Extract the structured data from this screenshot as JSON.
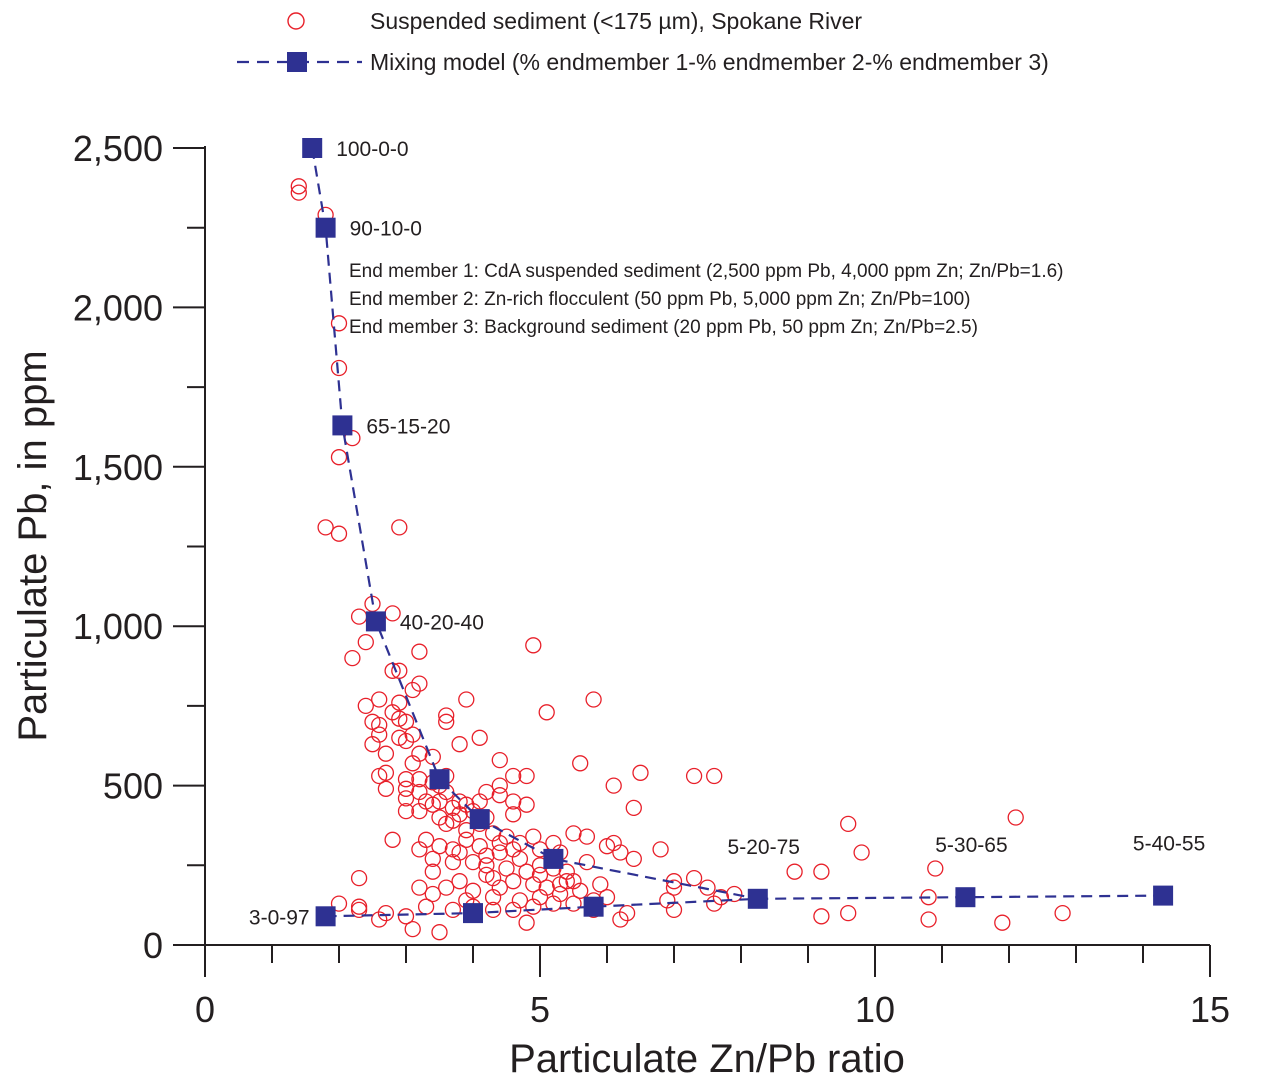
{
  "chart_data": {
    "type": "scatter",
    "xlabel": "Particulate Zn/Pb ratio",
    "ylabel": "Particulate Pb, in ppm",
    "xlim": [
      0,
      15
    ],
    "ylim": [
      0,
      2500
    ],
    "x_ticks": [
      0,
      5,
      10,
      15
    ],
    "x_tick_labels": [
      "0",
      "5",
      "10",
      "15"
    ],
    "x_minor_step": 1,
    "y_ticks": [
      0,
      500,
      1000,
      1500,
      2000,
      2500
    ],
    "y_tick_labels": [
      "0",
      "500",
      "1,000",
      "1,500",
      "2,000",
      "2,500"
    ],
    "y_minor_step": 250,
    "legend_position": "top",
    "colors": {
      "sediment": "#e8202a",
      "model": "#2e3192",
      "text": "#231f20"
    },
    "legend": [
      {
        "label": "Suspended sediment (<175 µm), Spokane River",
        "marker": "open-circle"
      },
      {
        "label": "Mixing model (% endmember 1-% endmember 2-% endmember 3)",
        "marker": "filled-square-dashed-line"
      }
    ],
    "series": [
      {
        "name": "Suspended sediment (<175 µm), Spokane River",
        "points": [
          [
            1.4,
            2380
          ],
          [
            1.4,
            2360
          ],
          [
            1.8,
            2290
          ],
          [
            2.0,
            1950
          ],
          [
            2.0,
            1810
          ],
          [
            2.2,
            1590
          ],
          [
            2.0,
            1530
          ],
          [
            1.8,
            1310
          ],
          [
            2.9,
            1310
          ],
          [
            2.0,
            1290
          ],
          [
            2.5,
            1070
          ],
          [
            2.3,
            1030
          ],
          [
            2.8,
            1040
          ],
          [
            2.2,
            900
          ],
          [
            2.4,
            950
          ],
          [
            3.2,
            920
          ],
          [
            2.8,
            860
          ],
          [
            2.9,
            860
          ],
          [
            3.2,
            820
          ],
          [
            3.1,
            800
          ],
          [
            2.6,
            770
          ],
          [
            2.8,
            730
          ],
          [
            2.4,
            750
          ],
          [
            2.5,
            700
          ],
          [
            2.6,
            690
          ],
          [
            2.9,
            710
          ],
          [
            3.0,
            700
          ],
          [
            2.6,
            660
          ],
          [
            2.9,
            650
          ],
          [
            3.0,
            640
          ],
          [
            3.1,
            660
          ],
          [
            3.6,
            720
          ],
          [
            3.9,
            770
          ],
          [
            3.6,
            700
          ],
          [
            2.5,
            630
          ],
          [
            3.2,
            600
          ],
          [
            3.4,
            590
          ],
          [
            3.1,
            570
          ],
          [
            2.6,
            530
          ],
          [
            2.7,
            540
          ],
          [
            3.0,
            520
          ],
          [
            3.2,
            520
          ],
          [
            3.4,
            510
          ],
          [
            3.0,
            490
          ],
          [
            3.2,
            480
          ],
          [
            3.5,
            500
          ],
          [
            3.6,
            480
          ],
          [
            2.7,
            490
          ],
          [
            3.0,
            460
          ],
          [
            3.3,
            450
          ],
          [
            3.4,
            440
          ],
          [
            3.8,
            450
          ],
          [
            3.7,
            430
          ],
          [
            3.9,
            440
          ],
          [
            3.2,
            420
          ],
          [
            3.5,
            400
          ],
          [
            3.7,
            390
          ],
          [
            3.8,
            410
          ],
          [
            4.0,
            420
          ],
          [
            4.1,
            380
          ],
          [
            4.2,
            400
          ],
          [
            4.4,
            500
          ],
          [
            4.6,
            530
          ],
          [
            4.8,
            530
          ],
          [
            4.4,
            470
          ],
          [
            4.2,
            480
          ],
          [
            3.9,
            360
          ],
          [
            3.6,
            380
          ],
          [
            4.3,
            350
          ],
          [
            4.5,
            340
          ],
          [
            4.7,
            320
          ],
          [
            4.9,
            340
          ],
          [
            5.0,
            300
          ],
          [
            4.6,
            300
          ],
          [
            4.4,
            290
          ],
          [
            4.2,
            280
          ],
          [
            3.8,
            290
          ],
          [
            3.7,
            300
          ],
          [
            3.5,
            310
          ],
          [
            3.2,
            300
          ],
          [
            3.4,
            270
          ],
          [
            4.0,
            260
          ],
          [
            4.2,
            250
          ],
          [
            4.5,
            240
          ],
          [
            4.8,
            230
          ],
          [
            5.0,
            250
          ],
          [
            5.2,
            240
          ],
          [
            5.4,
            230
          ],
          [
            4.3,
            210
          ],
          [
            4.6,
            200
          ],
          [
            4.9,
            190
          ],
          [
            5.1,
            180
          ],
          [
            5.3,
            190
          ],
          [
            5.5,
            200
          ],
          [
            3.8,
            200
          ],
          [
            3.6,
            180
          ],
          [
            3.4,
            160
          ],
          [
            3.2,
            180
          ],
          [
            4.0,
            170
          ],
          [
            4.3,
            150
          ],
          [
            4.7,
            140
          ],
          [
            5.0,
            150
          ],
          [
            5.3,
            160
          ],
          [
            5.6,
            170
          ],
          [
            5.9,
            190
          ],
          [
            6.0,
            150
          ],
          [
            5.8,
            140
          ],
          [
            5.5,
            130
          ],
          [
            5.2,
            130
          ],
          [
            4.9,
            120
          ],
          [
            4.6,
            110
          ],
          [
            4.3,
            110
          ],
          [
            4.0,
            120
          ],
          [
            3.7,
            110
          ],
          [
            3.3,
            120
          ],
          [
            3.0,
            90
          ],
          [
            3.1,
            50
          ],
          [
            2.3,
            120
          ],
          [
            2.3,
            210
          ],
          [
            2.0,
            130
          ],
          [
            3.5,
            40
          ],
          [
            2.3,
            110
          ],
          [
            2.6,
            80
          ],
          [
            5.5,
            350
          ],
          [
            5.7,
            340
          ],
          [
            6.0,
            310
          ],
          [
            6.1,
            320
          ],
          [
            6.2,
            290
          ],
          [
            6.4,
            270
          ],
          [
            6.1,
            500
          ],
          [
            6.5,
            540
          ],
          [
            6.4,
            430
          ],
          [
            5.6,
            570
          ],
          [
            4.9,
            940
          ],
          [
            5.8,
            770
          ],
          [
            5.1,
            730
          ],
          [
            4.1,
            650
          ],
          [
            4.4,
            580
          ],
          [
            6.8,
            300
          ],
          [
            7.0,
            200
          ],
          [
            7.0,
            180
          ],
          [
            7.3,
            210
          ],
          [
            7.5,
            180
          ],
          [
            7.7,
            150
          ],
          [
            7.9,
            160
          ],
          [
            7.6,
            130
          ],
          [
            7.0,
            110
          ],
          [
            7.3,
            530
          ],
          [
            7.6,
            530
          ],
          [
            9.6,
            380
          ],
          [
            9.8,
            290
          ],
          [
            8.8,
            230
          ],
          [
            9.2,
            230
          ],
          [
            9.2,
            90
          ],
          [
            9.6,
            100
          ],
          [
            10.8,
            80
          ],
          [
            10.9,
            240
          ],
          [
            10.8,
            150
          ],
          [
            11.9,
            70
          ],
          [
            12.1,
            400
          ],
          [
            12.8,
            100
          ],
          [
            4.1,
            450
          ],
          [
            4.8,
            440
          ],
          [
            4.6,
            410
          ],
          [
            3.9,
            330
          ],
          [
            3.3,
            330
          ],
          [
            2.8,
            330
          ],
          [
            4.2,
            220
          ],
          [
            3.7,
            260
          ],
          [
            4.4,
            320
          ],
          [
            5.3,
            290
          ],
          [
            4.7,
            270
          ],
          [
            3.0,
            420
          ],
          [
            2.7,
            600
          ],
          [
            2.9,
            760
          ],
          [
            3.5,
            450
          ],
          [
            3.8,
            630
          ],
          [
            4.6,
            450
          ],
          [
            3.6,
            530
          ],
          [
            4.1,
            310
          ],
          [
            5.0,
            220
          ],
          [
            5.7,
            260
          ],
          [
            5.4,
            200
          ],
          [
            6.3,
            100
          ],
          [
            6.9,
            140
          ],
          [
            3.9,
            140
          ],
          [
            4.4,
            180
          ],
          [
            5.8,
            110
          ],
          [
            6.2,
            80
          ],
          [
            4.8,
            70
          ],
          [
            2.7,
            100
          ],
          [
            3.4,
            230
          ],
          [
            5.2,
            320
          ]
        ]
      },
      {
        "name": "Mixing model (% endmember 1-% endmember 2-% endmember 3)",
        "upper_branch": [
          [
            1.6,
            2500
          ],
          [
            1.8,
            2250
          ],
          [
            2.05,
            1630
          ],
          [
            2.55,
            1015
          ],
          [
            3.5,
            520
          ],
          [
            4.1,
            395
          ],
          [
            5.2,
            270
          ],
          [
            8.25,
            145
          ]
        ],
        "lower_branch": [
          [
            1.8,
            90
          ],
          [
            4.0,
            100
          ],
          [
            5.8,
            120
          ],
          [
            8.25,
            145
          ],
          [
            11.35,
            150
          ],
          [
            14.3,
            155
          ]
        ],
        "labeled_points": [
          {
            "label": "100-0-0",
            "x": 1.6,
            "y": 2500,
            "side": "right"
          },
          {
            "label": "90-10-0",
            "x": 1.8,
            "y": 2250,
            "side": "right"
          },
          {
            "label": "65-15-20",
            "x": 2.05,
            "y": 1630,
            "side": "right"
          },
          {
            "label": "40-20-40",
            "x": 2.55,
            "y": 1015,
            "side": "right"
          },
          {
            "label": "3-0-97",
            "x": 1.8,
            "y": 90,
            "side": "left"
          },
          {
            "label": "5-20-75",
            "x": 8.25,
            "y": 145,
            "side": "above"
          },
          {
            "label": "5-30-65",
            "x": 11.35,
            "y": 150,
            "side": "above"
          },
          {
            "label": "5-40-55",
            "x": 14.3,
            "y": 155,
            "side": "above"
          }
        ]
      }
    ],
    "annotations": [
      "End member 1: CdA suspended sediment (2,500 ppm Pb, 4,000 ppm Zn; Zn/Pb=1.6)",
      "End member 2: Zn-rich flocculent (50 ppm Pb, 5,000 ppm Zn; Zn/Pb=100)",
      "End member 3: Background sediment (20 ppm Pb, 50 ppm Zn; Zn/Pb=2.5)"
    ]
  }
}
